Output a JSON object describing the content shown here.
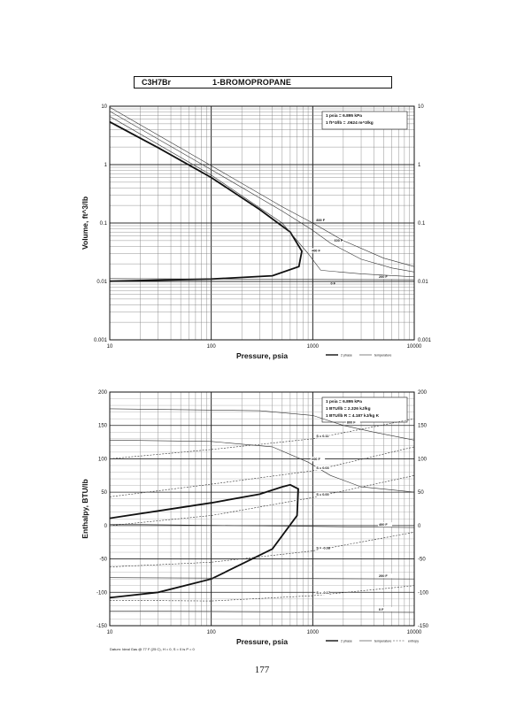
{
  "header": {
    "formula": "C3H7Br",
    "name": "1-BROMOPROPANE"
  },
  "page_number": "177",
  "datum": "Datum: Ideal Gas @ 77 F (25 C), H = 0, S = 0 is P = 0",
  "chart_data": [
    {
      "type": "line",
      "xlabel": "Pressure,  psia",
      "ylabel": "Volume, ft^3/lb",
      "x_scale": "log",
      "y_scale": "log",
      "xlim": [
        10,
        10000
      ],
      "ylim": [
        0.001,
        10
      ],
      "x_ticks": [
        "10",
        "100",
        "1000",
        "10000"
      ],
      "y_ticks": [
        "10",
        "1",
        "0.1",
        "0.01",
        "0.001"
      ],
      "notes": [
        "1 psia = 6.895 kPa",
        "1 ft^3/lb = .0624 m^3/kg"
      ],
      "legend": [
        "2 phase",
        "temperature"
      ],
      "series": [
        {
          "name": "2 phase",
          "role": "dome",
          "points": [
            [
              10,
              5.4
            ],
            [
              30,
              1.95
            ],
            [
              100,
              0.6
            ],
            [
              300,
              0.17
            ],
            [
              600,
              0.07
            ],
            [
              780,
              0.033
            ],
            [
              730,
              0.018
            ],
            [
              400,
              0.0125
            ],
            [
              100,
              0.011
            ],
            [
              10,
              0.0101
            ]
          ]
        },
        {
          "name": "200 F",
          "role": "temperature",
          "points": [
            [
              10,
              0.0112
            ],
            [
              10000,
              0.0107
            ]
          ],
          "label": "200 F"
        },
        {
          "name": "400 F",
          "role": "temperature",
          "points": [
            [
              10,
              6.7
            ],
            [
              100,
              0.66
            ],
            [
              500,
              0.1
            ],
            [
              900,
              0.03
            ],
            [
              1200,
              0.0155
            ],
            [
              3000,
              0.0135
            ],
            [
              10000,
              0.012
            ]
          ],
          "label": "400 F"
        },
        {
          "name": "600 F",
          "role": "temperature",
          "points": [
            [
              10,
              8.2
            ],
            [
              100,
              0.82
            ],
            [
              500,
              0.16
            ],
            [
              1000,
              0.075
            ],
            [
              1500,
              0.045
            ],
            [
              3000,
              0.024
            ],
            [
              6000,
              0.017
            ],
            [
              10000,
              0.0145
            ]
          ],
          "label": "600 F"
        },
        {
          "name": "800 F",
          "role": "temperature",
          "points": [
            [
              10,
              9.6
            ],
            [
              100,
              0.96
            ],
            [
              500,
              0.19
            ],
            [
              1000,
              0.1
            ],
            [
              2000,
              0.05
            ],
            [
              5000,
              0.025
            ],
            [
              10000,
              0.018
            ]
          ],
          "label": "800 F"
        }
      ],
      "extra_labels": [
        "0 F"
      ]
    },
    {
      "type": "line",
      "xlabel": "Pressure,  psia",
      "ylabel": "Enthalpy, BTU/lb",
      "x_scale": "log",
      "y_scale": "linear",
      "xlim": [
        10,
        10000
      ],
      "ylim": [
        -150,
        200
      ],
      "x_ticks": [
        "10",
        "100",
        "1000",
        "10000"
      ],
      "y_ticks": [
        "200",
        "150",
        "100",
        "50",
        "0",
        "-50",
        "-100",
        "-150"
      ],
      "notes": [
        "1 psia = 6.895 kPa",
        "1 BTU/lb = 2.326 kJ/kg",
        "1 BTU/lb R = 4.187 kJ/kg K"
      ],
      "legend": [
        "2 phase",
        "temperature",
        "entropy"
      ],
      "series": [
        {
          "name": "2 phase",
          "role": "dome",
          "points": [
            [
              10,
              11
            ],
            [
              30,
              22
            ],
            [
              100,
              34
            ],
            [
              300,
              47
            ],
            [
              500,
              58
            ],
            [
              600,
              61
            ],
            [
              720,
              55
            ],
            [
              700,
              15
            ],
            [
              400,
              -35
            ],
            [
              100,
              -80
            ],
            [
              30,
              -100
            ],
            [
              10,
              -108
            ]
          ]
        },
        {
          "name": "800 F",
          "role": "temperature",
          "points": [
            [
              10,
              175
            ],
            [
              300,
              172
            ],
            [
              1000,
              165
            ],
            [
              2000,
              150
            ],
            [
              4000,
              140
            ],
            [
              10000,
              128
            ]
          ],
          "label": "800 F"
        },
        {
          "name": "600 F",
          "role": "temperature",
          "points": [
            [
              10,
              128
            ],
            [
              100,
              126
            ],
            [
              400,
              118
            ],
            [
              900,
              95
            ],
            [
              1500,
              75
            ],
            [
              3000,
              58
            ],
            [
              10000,
              50
            ]
          ],
          "label": "600 F"
        },
        {
          "name": "400 F",
          "role": "temperature",
          "points": [
            [
              10,
              2
            ],
            [
              10000,
              -3
            ]
          ],
          "label": "400 F"
        },
        {
          "name": "200 F",
          "role": "temperature",
          "points": [
            [
              10,
              -78
            ],
            [
              10000,
              -80
            ]
          ],
          "label": "200 F"
        },
        {
          "name": "0 F",
          "role": "temperature",
          "points": [
            [
              10,
              -128
            ],
            [
              10000,
              -130
            ]
          ],
          "label": "0 F"
        },
        {
          "name": "S = 0.11",
          "role": "entropy",
          "points": [
            [
              10,
              100
            ],
            [
              100,
              114
            ],
            [
              1000,
              130
            ],
            [
              10000,
              160
            ]
          ],
          "label": "S = 0.11"
        },
        {
          "name": "S = 0.03",
          "role": "entropy",
          "points": [
            [
              10,
              43
            ],
            [
              100,
              62
            ],
            [
              1000,
              82
            ],
            [
              10000,
              118
            ]
          ],
          "label": "S = 0.03"
        },
        {
          "name": "S = 0.00",
          "role": "entropy",
          "points": [
            [
              10,
              0
            ],
            [
              100,
              15
            ],
            [
              1000,
              42
            ],
            [
              10000,
              75
            ]
          ],
          "label": "S = 0.00"
        },
        {
          "name": "S = -0.08",
          "role": "entropy",
          "points": [
            [
              10,
              -62
            ],
            [
              100,
              -55
            ],
            [
              1000,
              -38
            ],
            [
              10000,
              -10
            ]
          ],
          "label": "S = -0.08"
        },
        {
          "name": "S = -0.17",
          "role": "entropy",
          "points": [
            [
              10,
              -112
            ],
            [
              100,
              -113
            ],
            [
              1000,
              -105
            ],
            [
              10000,
              -90
            ]
          ],
          "label": "S = -0.17"
        }
      ]
    }
  ]
}
